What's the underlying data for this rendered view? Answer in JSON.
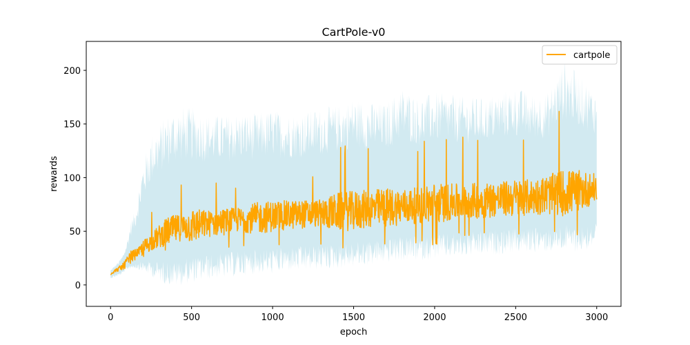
{
  "chart_data": {
    "type": "line",
    "title": "CartPole-v0",
    "xlabel": "epoch",
    "ylabel": "rewards",
    "xlim": [
      -150,
      3150
    ],
    "ylim": [
      -20,
      227
    ],
    "xticks": [
      0,
      500,
      1000,
      1500,
      2000,
      2500,
      3000
    ],
    "yticks": [
      0,
      50,
      100,
      150,
      200
    ],
    "grid": false,
    "legend": {
      "position": "top-right",
      "entries": [
        "cartpole"
      ]
    },
    "colors": {
      "line": "#ffa500",
      "band": "#add8e6",
      "frame": "#000000"
    },
    "series": [
      {
        "name": "cartpole",
        "color": "#ffa500",
        "x": [
          0,
          25,
          50,
          75,
          100,
          125,
          150,
          175,
          200,
          250,
          300,
          350,
          400,
          450,
          500,
          600,
          700,
          800,
          900,
          1000,
          1100,
          1200,
          1300,
          1400,
          1500,
          1600,
          1700,
          1800,
          1900,
          2000,
          2100,
          2200,
          2300,
          2400,
          2500,
          2600,
          2700,
          2800,
          2900,
          3000
        ],
        "mean": [
          10,
          13,
          15,
          17,
          22,
          26,
          29,
          31,
          34,
          40,
          45,
          50,
          52,
          54,
          55,
          57,
          59,
          61,
          62,
          64,
          65,
          66,
          67,
          68,
          69,
          71,
          72,
          73,
          74,
          76,
          77,
          78,
          79,
          80,
          81,
          82,
          84,
          86,
          88,
          90
        ],
        "peak_max": [
          12,
          17,
          22,
          28,
          38,
          53,
          45,
          48,
          68,
          72,
          92,
          105,
          110,
          95,
          120,
          102,
          105,
          93,
          120,
          118,
          114,
          108,
          107,
          127,
          144,
          137,
          141,
          135,
          134,
          144,
          140,
          138,
          142,
          137,
          144,
          138,
          148,
          171,
          150,
          130
        ],
        "peak_min": [
          8,
          9,
          10,
          11,
          18,
          20,
          22,
          25,
          26,
          28,
          30,
          32,
          34,
          28,
          25,
          30,
          33,
          30,
          35,
          35,
          36,
          33,
          36,
          24,
          38,
          36,
          35,
          40,
          38,
          34,
          42,
          44,
          45,
          46,
          43,
          45,
          42,
          46,
          44,
          54
        ],
        "band_upper": [
          14,
          18,
          22,
          28,
          40,
          60,
          70,
          90,
          115,
          140,
          150,
          160,
          165,
          166,
          166,
          160,
          158,
          162,
          160,
          164,
          160,
          162,
          165,
          168,
          175,
          170,
          170,
          185,
          175,
          180,
          178,
          175,
          175,
          180,
          185,
          178,
          180,
          210,
          195,
          180
        ],
        "band_lower": [
          6,
          7,
          8,
          10,
          14,
          15,
          15,
          14,
          12,
          8,
          3,
          0,
          -2,
          0,
          2,
          5,
          6,
          8,
          10,
          10,
          12,
          12,
          14,
          15,
          16,
          18,
          20,
          22,
          22,
          24,
          25,
          26,
          27,
          28,
          30,
          30,
          30,
          32,
          30,
          35
        ]
      }
    ]
  }
}
